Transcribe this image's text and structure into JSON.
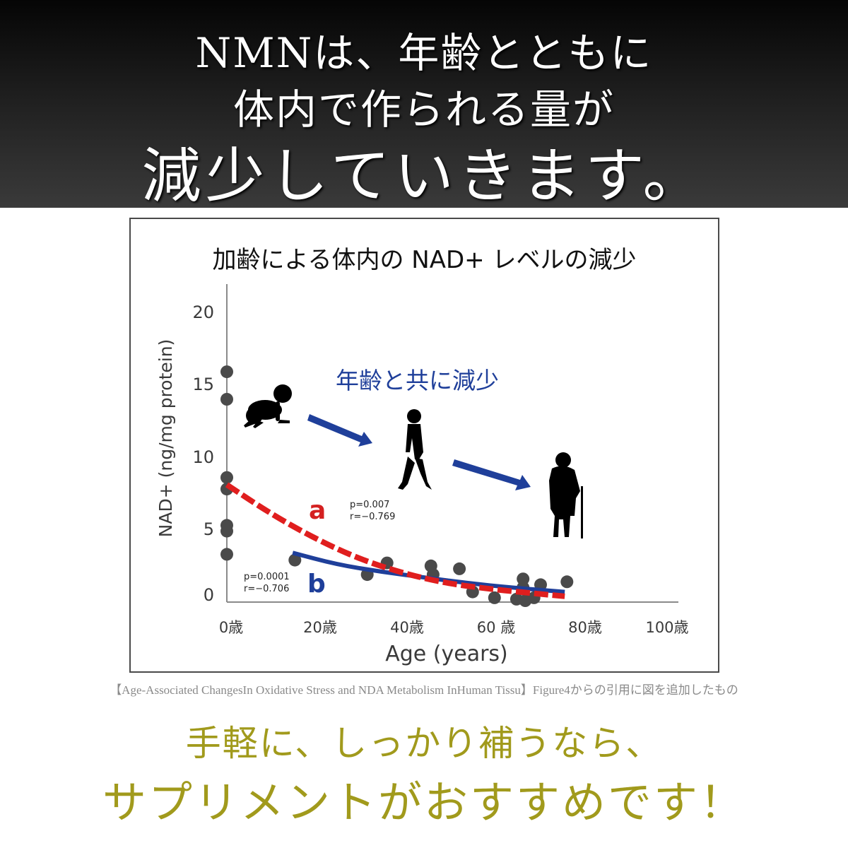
{
  "hero": {
    "line1": "NMNは、年齢とともに",
    "line2": "体内で作られる量が",
    "line3": "減少していきます。"
  },
  "chart": {
    "title": "加齢による体内の NAD+ レベルの減少",
    "annotation": "年齢と共に減少",
    "annotation_color": "#1f3f9a",
    "series_a_label": "a",
    "series_a_stats": [
      "p=0.007",
      "r=−0.769"
    ],
    "series_b_label": "b",
    "series_b_stats": [
      "p=0.0001",
      "r=−0.706"
    ],
    "icons": [
      "baby-crawling-icon",
      "walking-adult-icon",
      "elderly-with-cane-icon",
      "arrow-right-down-icon"
    ]
  },
  "chart_data": {
    "type": "scatter",
    "title": "加齢による体内の NAD+ レベルの減少",
    "xlabel": "Age (years)",
    "ylabel": "NAD+ (ng/mg protein)",
    "xlim": [
      0,
      100
    ],
    "ylim": [
      0,
      20
    ],
    "x_ticks": [
      "0歳",
      "20歳",
      "40歳",
      "60 歳",
      "80歳",
      "100歳"
    ],
    "y_ticks": [
      "0",
      "5",
      "10",
      "15",
      "20"
    ],
    "grid": false,
    "points": [
      {
        "x": 0,
        "y": 15.9
      },
      {
        "x": 0,
        "y": 14.0
      },
      {
        "x": 0,
        "y": 8.6
      },
      {
        "x": 0,
        "y": 7.8
      },
      {
        "x": 0,
        "y": 5.3
      },
      {
        "x": 0,
        "y": 4.9
      },
      {
        "x": 0,
        "y": 3.3
      },
      {
        "x": 15.5,
        "y": 2.9
      },
      {
        "x": 32,
        "y": 1.9
      },
      {
        "x": 36.5,
        "y": 2.7
      },
      {
        "x": 46.5,
        "y": 2.5
      },
      {
        "x": 47,
        "y": 1.9
      },
      {
        "x": 53,
        "y": 2.3
      },
      {
        "x": 56,
        "y": 0.7
      },
      {
        "x": 61,
        "y": 0.3
      },
      {
        "x": 67.5,
        "y": 1.6
      },
      {
        "x": 67.5,
        "y": 1.0
      },
      {
        "x": 66,
        "y": 0.2
      },
      {
        "x": 68,
        "y": 0.1
      },
      {
        "x": 70,
        "y": 0.3
      },
      {
        "x": 71.5,
        "y": 1.2
      },
      {
        "x": 77.5,
        "y": 1.4
      }
    ],
    "series": [
      {
        "name": "a",
        "style": "dashed",
        "color": "#e01e1e",
        "stats": "p=0.007, r=-0.769",
        "x": [
          0,
          10,
          20,
          30,
          40,
          50,
          60,
          70,
          77
        ],
        "y": [
          8.1,
          6.1,
          4.4,
          3.0,
          2.0,
          1.3,
          0.9,
          0.6,
          0.4
        ]
      },
      {
        "name": "b",
        "style": "solid",
        "color": "#1f3f9a",
        "stats": "p=0.0001, r=-0.706",
        "x": [
          15,
          25,
          35,
          45,
          55,
          65,
          77
        ],
        "y": [
          3.4,
          2.6,
          2.1,
          1.7,
          1.3,
          1.0,
          0.7
        ]
      }
    ]
  },
  "caption": "【Age-Associated ChangesIn Oxidative Stress and NDA Metabolism InHuman Tissu】Figure4からの引用に図を追加したもの",
  "cta": {
    "line1": "手軽に、しっかり補うなら、",
    "line2": "サプリメントがおすすめです！",
    "color": "#a19a1c"
  }
}
